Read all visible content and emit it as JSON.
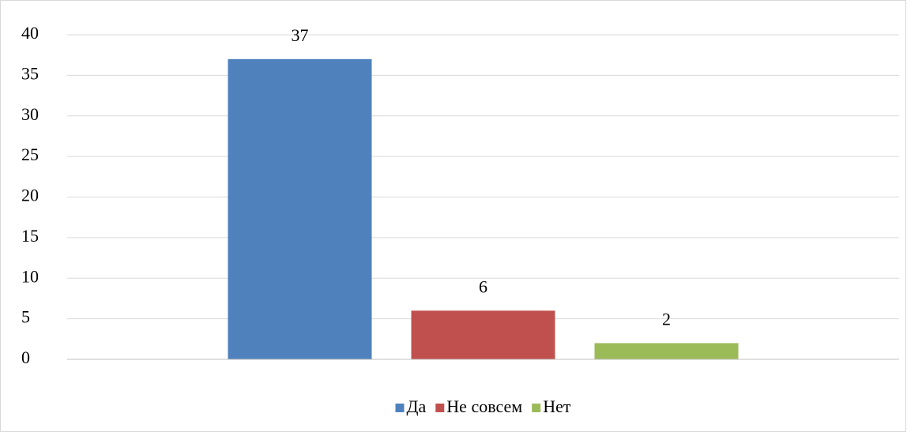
{
  "chart_data": {
    "type": "bar",
    "categories": [
      null
    ],
    "series": [
      {
        "name": "Да",
        "color": "#4f81bd",
        "values": [
          37
        ]
      },
      {
        "name": "Не совсем",
        "color": "#c0504d",
        "values": [
          6
        ]
      },
      {
        "name": "Нет",
        "color": "#9bbb59",
        "values": [
          2
        ]
      }
    ],
    "ylim": [
      0,
      40
    ],
    "yticks": [
      0,
      5,
      10,
      15,
      20,
      25,
      30,
      35,
      40
    ],
    "grid": true,
    "legend": "bottom",
    "data_labels": true
  }
}
